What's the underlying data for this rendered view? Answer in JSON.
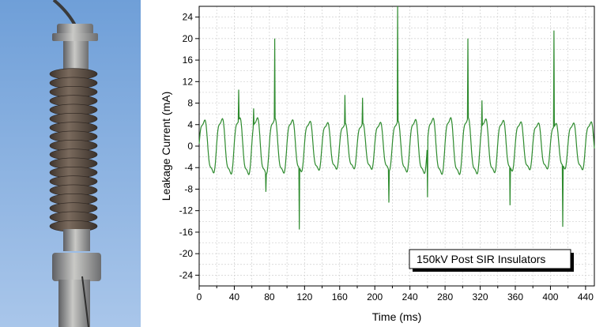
{
  "colors": {
    "trace": "#2e8b2e",
    "grid": "#cfcfcf",
    "sky_top": "#6f9fd8",
    "sky_bottom": "#a9c6ea",
    "insulator_shed": "#5a4d43"
  },
  "photo": {
    "subject": "post-insulator-photo"
  },
  "chart_data": {
    "type": "line",
    "xlabel": "Time (ms)",
    "ylabel": "Leakage Current (mA)",
    "legend": "150kV Post SIR Insulators",
    "legend_position": "bottom-right",
    "grid": true,
    "xlim": [
      0,
      450
    ],
    "ylim": [
      -26,
      26
    ],
    "x_ticks": [
      0,
      40,
      80,
      120,
      160,
      200,
      240,
      280,
      320,
      360,
      400,
      440
    ],
    "y_ticks": [
      -24,
      -20,
      -16,
      -12,
      -8,
      -4,
      0,
      4,
      8,
      12,
      16,
      20,
      24
    ],
    "period_ms": 20,
    "peak_mA": 5.5,
    "spikes": [
      {
        "x": 45,
        "y": 10.5
      },
      {
        "x": 62,
        "y": 7
      },
      {
        "x": 76,
        "y": -8.5
      },
      {
        "x": 86,
        "y": 20
      },
      {
        "x": 114,
        "y": -15.5
      },
      {
        "x": 166,
        "y": 9.5
      },
      {
        "x": 186,
        "y": 9
      },
      {
        "x": 216,
        "y": -10.5
      },
      {
        "x": 226,
        "y": 26
      },
      {
        "x": 260,
        "y": -9.5
      },
      {
        "x": 306,
        "y": 20
      },
      {
        "x": 322,
        "y": 8.5
      },
      {
        "x": 354,
        "y": -11
      },
      {
        "x": 404,
        "y": 21.5
      },
      {
        "x": 414,
        "y": -15
      }
    ]
  }
}
